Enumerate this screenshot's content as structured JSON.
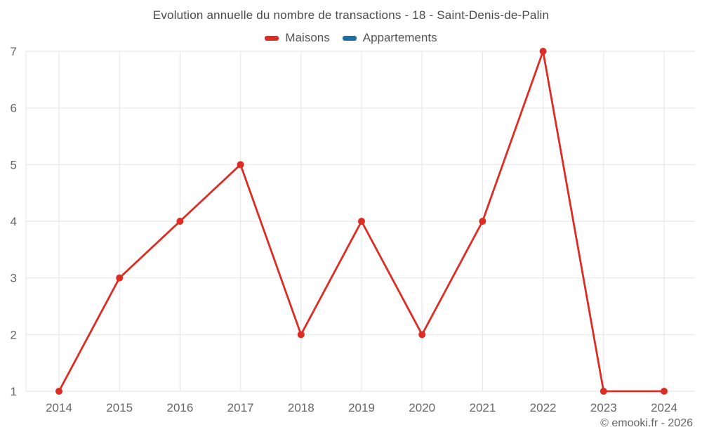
{
  "footer": {
    "credit": "© emooki.fr - 2026"
  },
  "chart_data": {
    "type": "line",
    "title": "Evolution annuelle du nombre de transactions - 18 - Saint-Denis-de-Palin",
    "x": [
      2014,
      2015,
      2016,
      2017,
      2018,
      2019,
      2020,
      2021,
      2022,
      2023,
      2024
    ],
    "series": [
      {
        "name": "Maisons",
        "color": "#dd2c23",
        "values": [
          1,
          3,
          4,
          5,
          2,
          4,
          2,
          4,
          7,
          1,
          1
        ]
      },
      {
        "name": "Appartements",
        "color": "#1c6ea4",
        "values": []
      }
    ],
    "xlabel": "",
    "ylabel": "",
    "ylim": [
      1,
      7
    ],
    "yticks": [
      1,
      2,
      3,
      4,
      5,
      6,
      7
    ],
    "grid": true,
    "legend_position": "top",
    "colors": {
      "grid": "#e8e8e8",
      "tick_label": "#666666",
      "title": "#4a4a4a",
      "legend_text": "#555555",
      "background": "#ffffff"
    }
  }
}
